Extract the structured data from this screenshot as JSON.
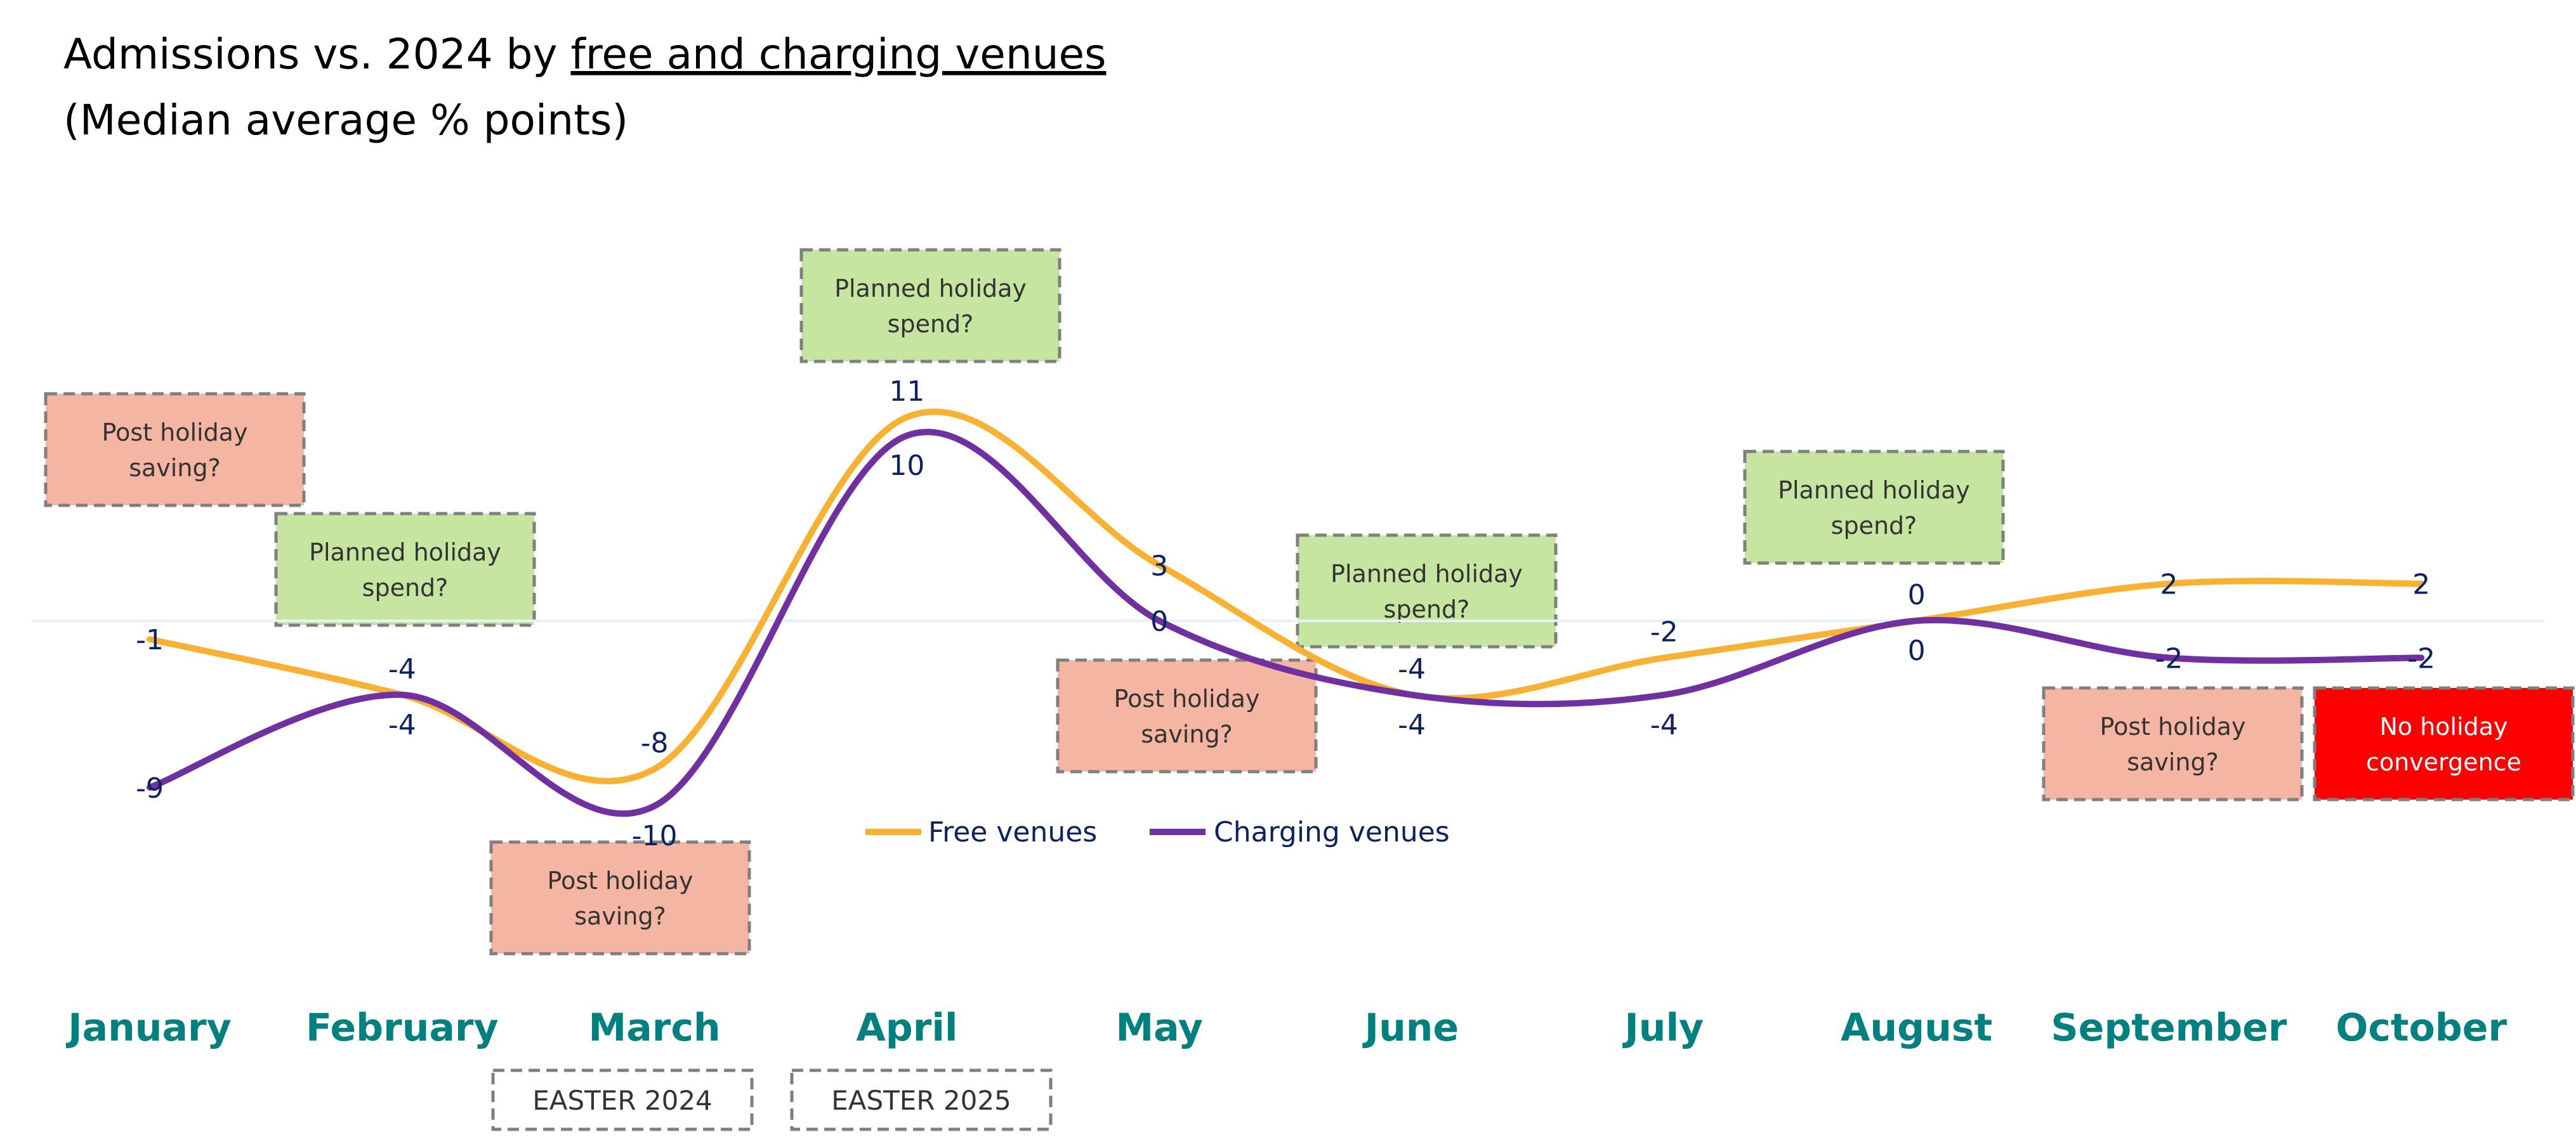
{
  "chart_data": {
    "type": "line",
    "title": "Admissions vs. 2024 by",
    "title_underlined": "free and charging venues",
    "subtitle": "(Median average % points)",
    "categories": [
      "January",
      "February",
      "March",
      "April",
      "May",
      "June",
      "July",
      "August",
      "September",
      "October"
    ],
    "series": [
      {
        "name": "Free venues",
        "color": "#f9b133",
        "values": [
          -1,
          -4,
          -8,
          11,
          3,
          -4,
          -2,
          0,
          2,
          2
        ]
      },
      {
        "name": "Charging venues",
        "color": "#7030a0",
        "values": [
          -9,
          -4,
          -10,
          10,
          0,
          -4,
          -4,
          0,
          -2,
          -2
        ]
      }
    ],
    "ylim": [
      -10,
      11
    ],
    "grid": false,
    "zero_line": true,
    "legend_position": "bottom-center",
    "data_labels": true,
    "annotations": [
      {
        "text": [
          "Post holiday",
          "saving?"
        ],
        "color": "#f4b6a2",
        "near": "January"
      },
      {
        "text": [
          "Planned holiday",
          "spend?"
        ],
        "color": "#c5e5a0",
        "near": "February"
      },
      {
        "text": [
          "Planned holiday",
          "spend?"
        ],
        "color": "#c5e5a0",
        "near": "April"
      },
      {
        "text": [
          "Post holiday",
          "saving?"
        ],
        "color": "#f4b6a2",
        "near": "March"
      },
      {
        "text": [
          "Post holiday",
          "saving?"
        ],
        "color": "#f4b6a2",
        "near": "May"
      },
      {
        "text": [
          "Planned holiday",
          "spend?"
        ],
        "color": "#c5e5a0",
        "near": "June"
      },
      {
        "text": [
          "Planned holiday",
          "spend?"
        ],
        "color": "#c5e5a0",
        "near": "August"
      },
      {
        "text": [
          "Post holiday",
          "saving?"
        ],
        "color": "#f4b6a2",
        "near": "September"
      },
      {
        "text": [
          "No holiday",
          "convergence"
        ],
        "color": "#ff0000",
        "near": "October"
      }
    ],
    "category_notes": [
      {
        "text": "EASTER 2024",
        "under": "March"
      },
      {
        "text": "EASTER 2025",
        "under": "April"
      }
    ]
  }
}
